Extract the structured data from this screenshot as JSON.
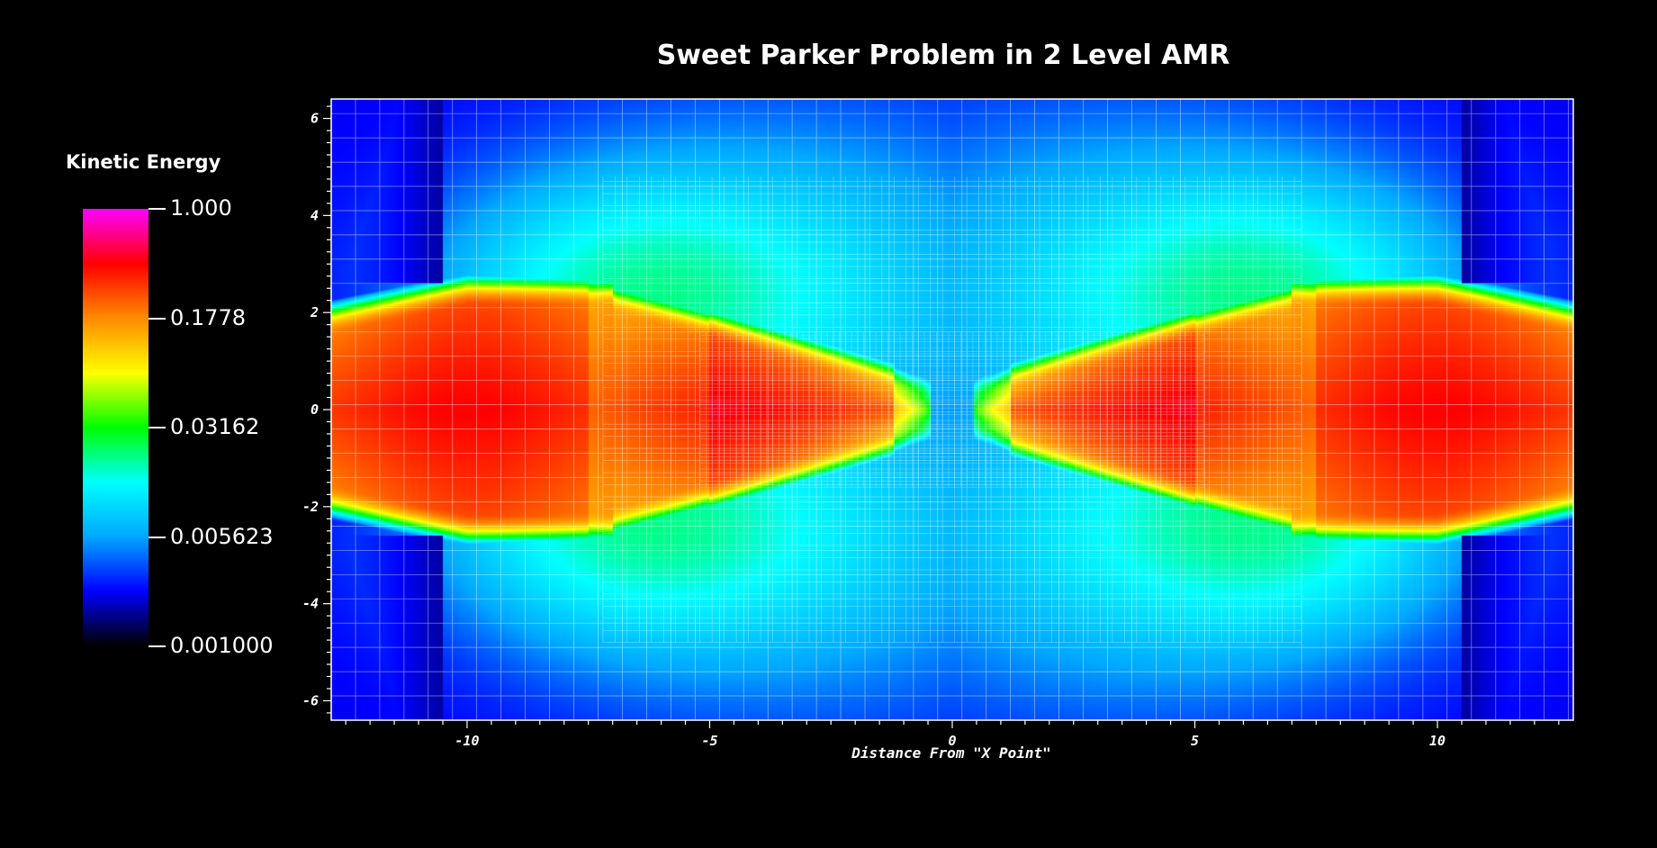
{
  "chart_data": {
    "type": "heatmap",
    "title": "Sweet Parker Problem in 2 Level AMR",
    "xlabel": "Distance From \"X Point\"",
    "ylabel": "",
    "xlim": [
      -12.8,
      12.8
    ],
    "ylim": [
      -6.4,
      6.4
    ],
    "xticks": [
      -10,
      -5,
      0,
      5,
      10
    ],
    "yticks": [
      6,
      4,
      2,
      0,
      -2,
      -4,
      -6
    ],
    "xtick_labels": [
      "-10",
      "-5",
      "0",
      "5",
      "10"
    ],
    "ytick_labels": [
      "6",
      "4",
      "2",
      "0",
      "-2",
      "-4",
      "-6"
    ],
    "colorbar": {
      "title": "Kinetic Energy",
      "scale": "log",
      "range": [
        0.001,
        1.0
      ],
      "ticks": [
        1.0,
        0.1778,
        0.03162,
        0.005623,
        0.001
      ],
      "tick_labels": [
        "1.000",
        "0.1778",
        "0.03162",
        "0.005623",
        "0.001000"
      ],
      "colors": [
        "#000000",
        "#0000ff",
        "#00a8ff",
        "#00ffff",
        "#00ff00",
        "#ffff00",
        "#ff8c00",
        "#ff0000",
        "#ff00ff"
      ]
    },
    "amr_levels": [
      {
        "level": 0,
        "x_range": [
          -12.8,
          12.8
        ],
        "y_range": [
          -6.4,
          6.4
        ],
        "cell_size": 0.5
      },
      {
        "level": 1,
        "x_range": [
          -7.2,
          7.2
        ],
        "y_range": [
          -4.8,
          4.8
        ],
        "cell_size": 0.25
      },
      {
        "level": 2,
        "x_range": [
          -5.2,
          5.2
        ],
        "y_range": [
          -1.6,
          1.6
        ],
        "cell_size": 0.125
      }
    ]
  },
  "colors": {
    "background": "#000000",
    "grid": "#ffffff"
  }
}
